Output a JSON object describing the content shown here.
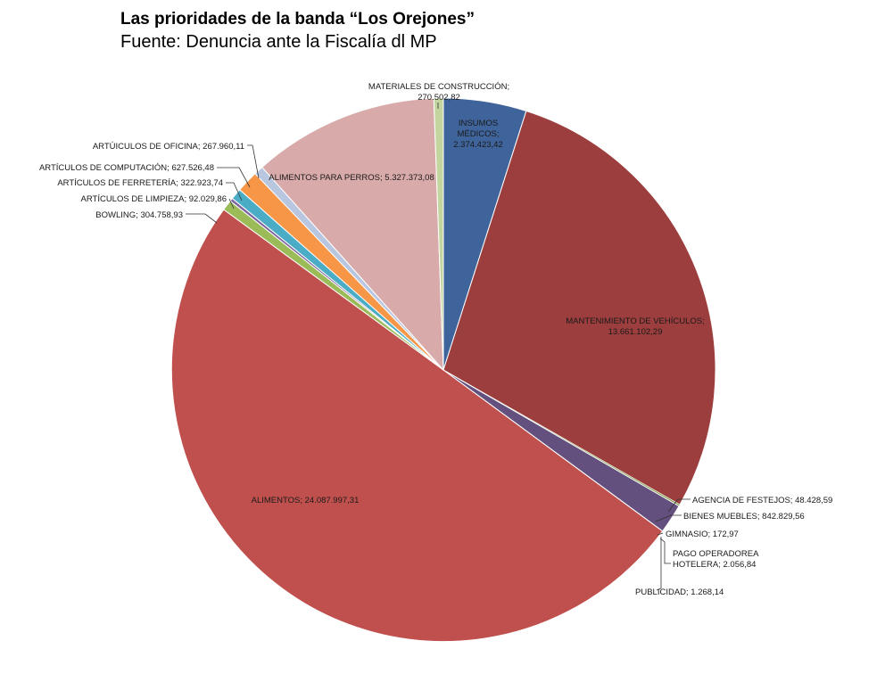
{
  "chart_data": {
    "type": "pie",
    "title": "Las prioridades de la banda “Los Orejones”",
    "subtitle": "Fuente: Denuncia ante la Fiscalía dl MP",
    "slices": [
      {
        "key": "insumos",
        "label_lines": [
          "INSUMOS",
          "MÉDICOS;",
          "2.374.423,42"
        ],
        "value": 2374423.42,
        "color": "#3f649b"
      },
      {
        "key": "vehiculos",
        "label_lines": [
          "MANTENIMIENTO DE VEHÍCULOS;",
          "13.661.102,29"
        ],
        "value": 13661102.29,
        "color": "#9c3e3d"
      },
      {
        "key": "festejos",
        "label_lines": [
          "AGENCIA DE FESTEJOS; 48.428,59"
        ],
        "value": 48428.59,
        "color": "#7f9c48"
      },
      {
        "key": "muebles",
        "label_lines": [
          "BIENES MUEBLES; 842.829,56"
        ],
        "value": 842829.56,
        "color": "#63507e"
      },
      {
        "key": "gimnasio",
        "label_lines": [
          "GIMNASIO; 172,97"
        ],
        "value": 172.97,
        "color": "#3aa0b8"
      },
      {
        "key": "hotelera",
        "label_lines": [
          "PAGO OPERADOREA",
          "HOTELERA; 2.056,84"
        ],
        "value": 2056.84,
        "color": "#e48a34"
      },
      {
        "key": "publicidad",
        "label_lines": [
          "PUBLICIDAD; 1.268,14"
        ],
        "value": 1268.14,
        "color": "#98aed3"
      },
      {
        "key": "alimentos",
        "label_lines": [
          "ALIMENTOS; 24.087.997,31"
        ],
        "value": 24087997.31,
        "color": "#c0504d"
      },
      {
        "key": "bowling",
        "label_lines": [
          "BOWLING; 304.758,93"
        ],
        "value": 304758.93,
        "color": "#9bbb59"
      },
      {
        "key": "limpieza",
        "label_lines": [
          "ARTÍCULOS DE LIMPIEZA; 92.029,86"
        ],
        "value": 92029.86,
        "color": "#7b64a0"
      },
      {
        "key": "ferreteria",
        "label_lines": [
          "ARTÍCULOS DE FERRETERÍA; 322.923,74"
        ],
        "value": 322923.74,
        "color": "#4bacc6"
      },
      {
        "key": "computacion",
        "label_lines": [
          "ARTÍCULOS DE COMPUTACIÓN; 627.526,48"
        ],
        "value": 627526.48,
        "color": "#f79646"
      },
      {
        "key": "oficina",
        "label_lines": [
          "ARTÚICULOS DE OFICINA; 267.960,11"
        ],
        "value": 267960.11,
        "color": "#b8c6e0"
      },
      {
        "key": "perros",
        "label_lines": [
          "ALIMENTOS PARA PERROS; 5.327.373,08"
        ],
        "value": 5327373.08,
        "color": "#d9aaaa"
      },
      {
        "key": "construccion",
        "label_lines": [
          "MATERIALES DE CONSTRUCCIÓN;",
          "270.502,82"
        ],
        "value": 270502.82,
        "color": "#c4d6a0"
      }
    ],
    "legend": "none"
  }
}
